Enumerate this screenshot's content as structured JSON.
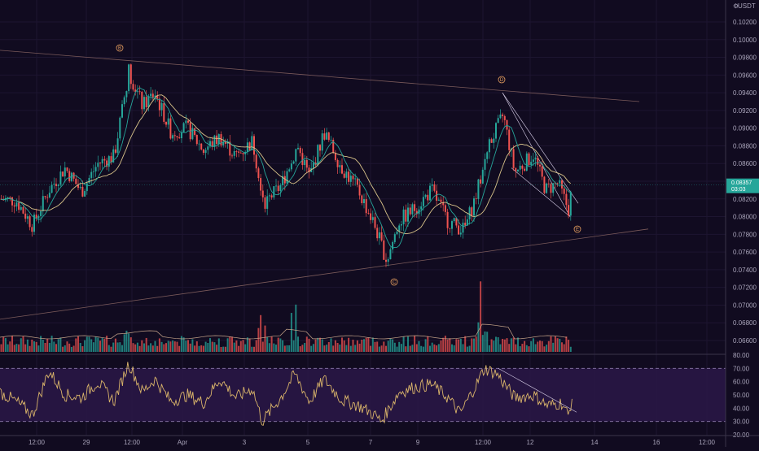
{
  "header": {
    "quote_currency": "USDT"
  },
  "price_axis": {
    "ticks": [
      "0.10200",
      "0.10000",
      "0.09800",
      "0.09600",
      "0.09400",
      "0.09200",
      "0.09000",
      "0.08800",
      "0.08600",
      "0.08400",
      "0.08200",
      "0.08000",
      "0.07800",
      "0.07600",
      "0.07400",
      "0.07200",
      "0.07000",
      "0.06800",
      "0.06600"
    ]
  },
  "current_price": {
    "price": "0.08357",
    "countdown": "03:03",
    "value": 0.08357,
    "color": "#26a69a"
  },
  "rsi_axis": {
    "ticks": [
      "80.00",
      "70.00",
      "60.00",
      "50.00",
      "40.00",
      "30.00",
      "20.00"
    ]
  },
  "time_axis": {
    "labels": [
      "12:00",
      "29",
      "12:00",
      "Apr",
      "3",
      "5",
      "7",
      "9",
      "12:00",
      "12",
      "14",
      "16",
      "12:00"
    ]
  },
  "wave_labels": [
    "B",
    "C",
    "D",
    "E"
  ],
  "colors": {
    "bull": "#26a69a",
    "bear": "#ef5350",
    "ma": "#d9c48a",
    "ema": "#26a69a",
    "rsi_line": "#d9b46a",
    "rsi_band": "#2a1848",
    "trendline": "#7a5a5a"
  },
  "chart_data": {
    "type": "candlestick",
    "ylim": [
      0.0655,
      0.103
    ],
    "rsi_ylim": [
      20,
      80
    ],
    "rsi_band": [
      30,
      70
    ],
    "anchor_points": [
      {
        "x": 0,
        "price": 0.082
      },
      {
        "x": 20,
        "price": 0.0818
      },
      {
        "x": 40,
        "price": 0.079
      },
      {
        "x": 60,
        "price": 0.083
      },
      {
        "x": 80,
        "price": 0.0855
      },
      {
        "x": 100,
        "price": 0.0828
      },
      {
        "x": 120,
        "price": 0.086
      },
      {
        "x": 140,
        "price": 0.0868
      },
      {
        "x": 150,
        "price": 0.092
      },
      {
        "x": 158,
        "price": 0.0965
      },
      {
        "x": 175,
        "price": 0.0925
      },
      {
        "x": 190,
        "price": 0.094
      },
      {
        "x": 210,
        "price": 0.0895
      },
      {
        "x": 230,
        "price": 0.09
      },
      {
        "x": 250,
        "price": 0.0875
      },
      {
        "x": 270,
        "price": 0.089
      },
      {
        "x": 290,
        "price": 0.0868
      },
      {
        "x": 310,
        "price": 0.0885
      },
      {
        "x": 325,
        "price": 0.0815
      },
      {
        "x": 345,
        "price": 0.0835
      },
      {
        "x": 365,
        "price": 0.088
      },
      {
        "x": 380,
        "price": 0.0845
      },
      {
        "x": 398,
        "price": 0.0895
      },
      {
        "x": 420,
        "price": 0.0855
      },
      {
        "x": 440,
        "price": 0.083
      },
      {
        "x": 460,
        "price": 0.079
      },
      {
        "x": 475,
        "price": 0.075
      },
      {
        "x": 490,
        "price": 0.0795
      },
      {
        "x": 510,
        "price": 0.081
      },
      {
        "x": 530,
        "price": 0.083
      },
      {
        "x": 550,
        "price": 0.0795
      },
      {
        "x": 570,
        "price": 0.0785
      },
      {
        "x": 585,
        "price": 0.0825
      },
      {
        "x": 600,
        "price": 0.088
      },
      {
        "x": 618,
        "price": 0.0915
      },
      {
        "x": 632,
        "price": 0.085
      },
      {
        "x": 655,
        "price": 0.087
      },
      {
        "x": 670,
        "price": 0.083
      },
      {
        "x": 685,
        "price": 0.0838
      },
      {
        "x": 698,
        "price": 0.0808
      },
      {
        "x": 703,
        "price": 0.0836
      }
    ],
    "rsi_anchor_points": [
      {
        "x": 0,
        "rsi": 52
      },
      {
        "x": 20,
        "rsi": 45
      },
      {
        "x": 40,
        "rsi": 35
      },
      {
        "x": 60,
        "rsi": 68
      },
      {
        "x": 80,
        "rsi": 50
      },
      {
        "x": 100,
        "rsi": 48
      },
      {
        "x": 120,
        "rsi": 60
      },
      {
        "x": 140,
        "rsi": 45
      },
      {
        "x": 158,
        "rsi": 74
      },
      {
        "x": 175,
        "rsi": 52
      },
      {
        "x": 190,
        "rsi": 62
      },
      {
        "x": 210,
        "rsi": 45
      },
      {
        "x": 230,
        "rsi": 50
      },
      {
        "x": 250,
        "rsi": 44
      },
      {
        "x": 270,
        "rsi": 62
      },
      {
        "x": 290,
        "rsi": 48
      },
      {
        "x": 310,
        "rsi": 55
      },
      {
        "x": 322,
        "rsi": 30
      },
      {
        "x": 345,
        "rsi": 48
      },
      {
        "x": 362,
        "rsi": 66
      },
      {
        "x": 380,
        "rsi": 45
      },
      {
        "x": 398,
        "rsi": 62
      },
      {
        "x": 420,
        "rsi": 46
      },
      {
        "x": 440,
        "rsi": 42
      },
      {
        "x": 460,
        "rsi": 35
      },
      {
        "x": 468,
        "rsi": 30
      },
      {
        "x": 490,
        "rsi": 52
      },
      {
        "x": 510,
        "rsi": 56
      },
      {
        "x": 530,
        "rsi": 58
      },
      {
        "x": 550,
        "rsi": 48
      },
      {
        "x": 565,
        "rsi": 36
      },
      {
        "x": 585,
        "rsi": 58
      },
      {
        "x": 595,
        "rsi": 70
      },
      {
        "x": 610,
        "rsi": 66
      },
      {
        "x": 632,
        "rsi": 48
      },
      {
        "x": 655,
        "rsi": 50
      },
      {
        "x": 672,
        "rsi": 42
      },
      {
        "x": 690,
        "rsi": 44
      },
      {
        "x": 698,
        "rsi": 34
      },
      {
        "x": 703,
        "rsi": 50
      }
    ]
  }
}
